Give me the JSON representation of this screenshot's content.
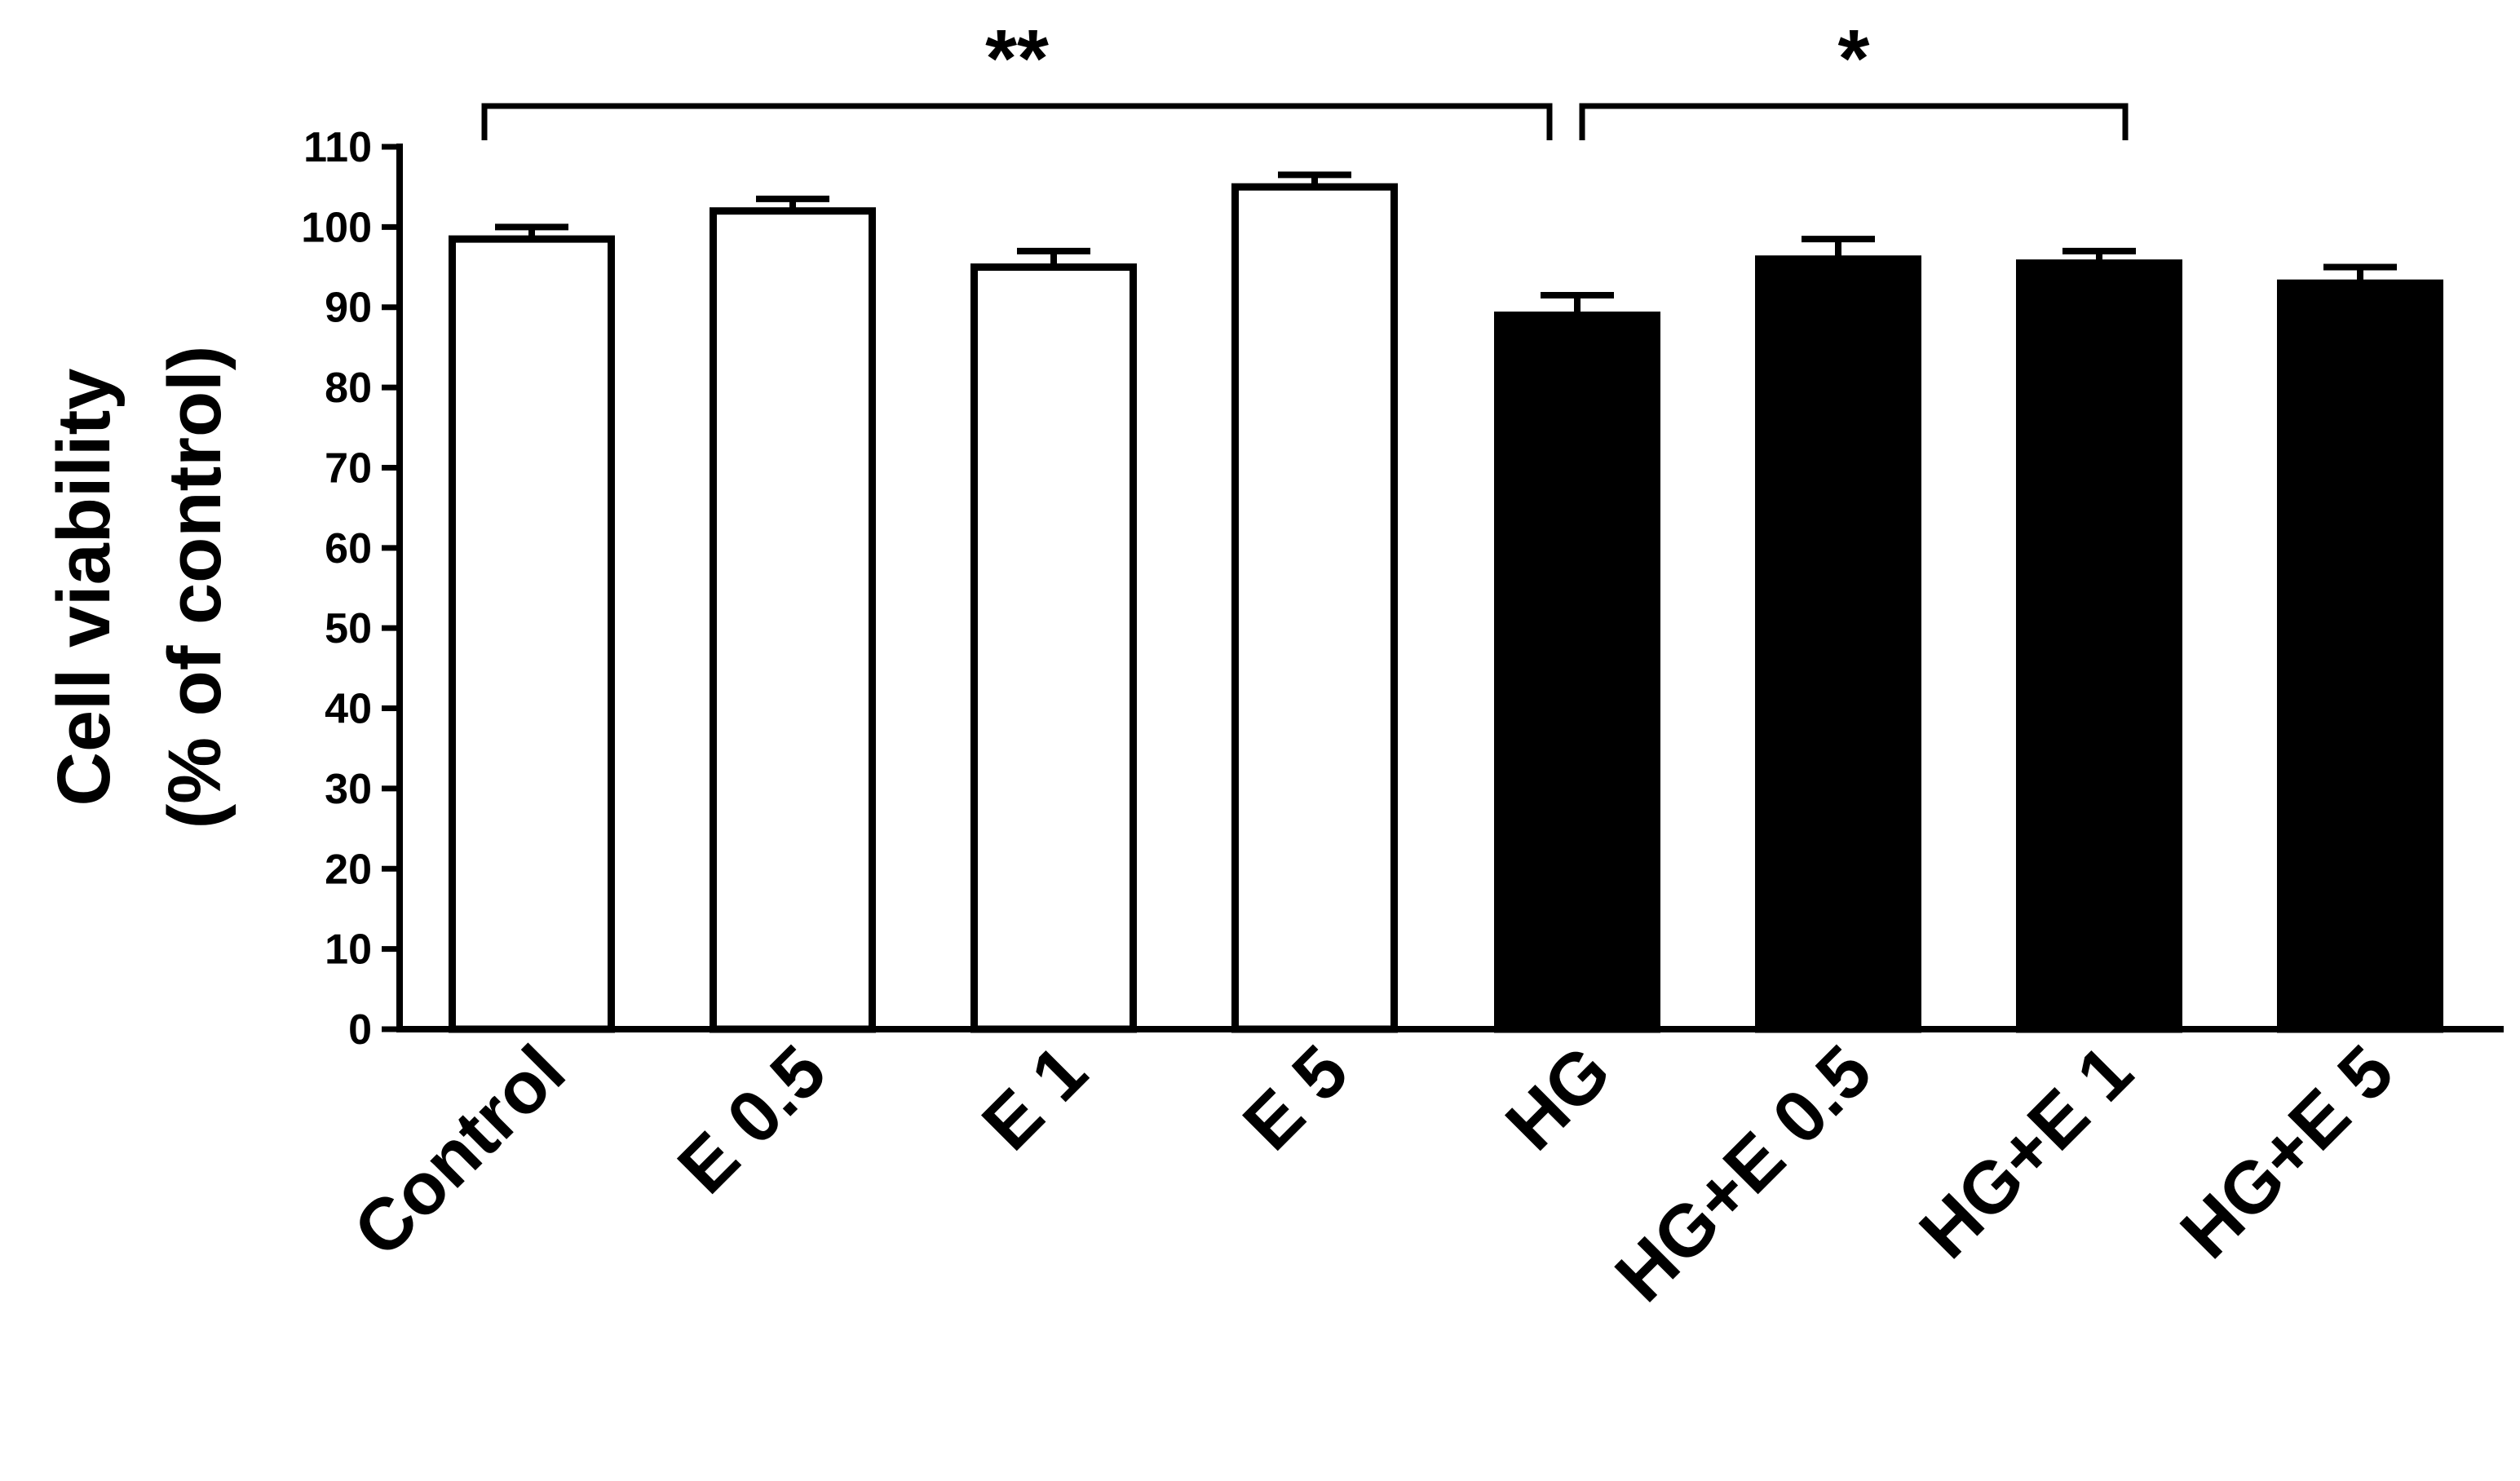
{
  "chart_data": {
    "type": "bar",
    "ylabel_lines": [
      "Cell viability",
      "(% of control)"
    ],
    "categories": [
      "Control",
      "E 0.5",
      "E 1",
      "E 5",
      "HG",
      "HG+E 0.5",
      "HG+E 1",
      "HG+E 5"
    ],
    "values": [
      98.5,
      102,
      95,
      105,
      89,
      96,
      95.5,
      93
    ],
    "errors": [
      1.5,
      1.5,
      2,
      1.5,
      2.5,
      2.5,
      1.5,
      2
    ],
    "fills": [
      "#ffffff",
      "#ffffff",
      "#ffffff",
      "#ffffff",
      "#000000",
      "#000000",
      "#000000",
      "#000000"
    ],
    "ylim": [
      0,
      110
    ],
    "yticks": [
      0,
      10,
      20,
      30,
      40,
      50,
      60,
      70,
      80,
      90,
      100,
      110
    ],
    "grid": false,
    "significance": [
      {
        "from": 0,
        "to": 4,
        "label": "**"
      },
      {
        "from": 4,
        "to": 6,
        "label": "*"
      }
    ]
  }
}
